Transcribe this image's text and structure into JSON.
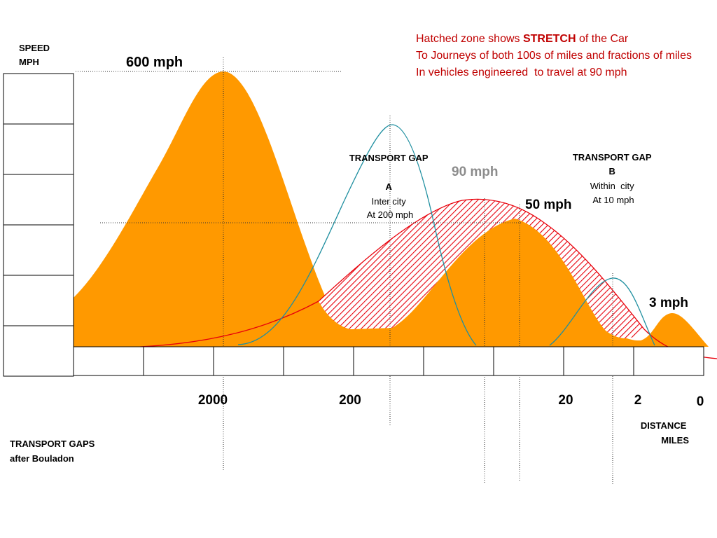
{
  "axis": {
    "y_label_line1": "SPEED",
    "y_label_line2": "MPH",
    "x_label_line1": "DISTANCE",
    "x_label_line2": "MILES",
    "x_ticks": [
      "2000",
      "200",
      "20",
      "2",
      "0"
    ]
  },
  "note": {
    "line1_prefix": "Hatched zone shows ",
    "line1_bold": "STRETCH",
    "line1_suffix": " of the Car",
    "line2": "To Journeys of both 100s of miles and fractions of miles",
    "line3": "In vehicles engineered  to travel at 90 mph"
  },
  "peaks": {
    "p600": "600 mph",
    "p90": "90 mph",
    "p50": "50 mph",
    "p3": "3 mph"
  },
  "gap_a": {
    "line1": "TRANSPORT GAP",
    "line2": "A",
    "line3": "Inter city",
    "line4": "At 200 mph"
  },
  "gap_b": {
    "line1": "TRANSPORT GAP",
    "line2": "B",
    "line3": "Within  city",
    "line4": "At 10 mph"
  },
  "footer": {
    "line1": "TRANSPORT GAPS",
    "line2": "after Bouladon"
  },
  "colors": {
    "orange_fill": "#FF9900",
    "stretch_red": "#E8000B",
    "gap_teal": "#1F8FA0",
    "grey_text": "#8C8C8C",
    "note_red": "#C00000"
  }
}
